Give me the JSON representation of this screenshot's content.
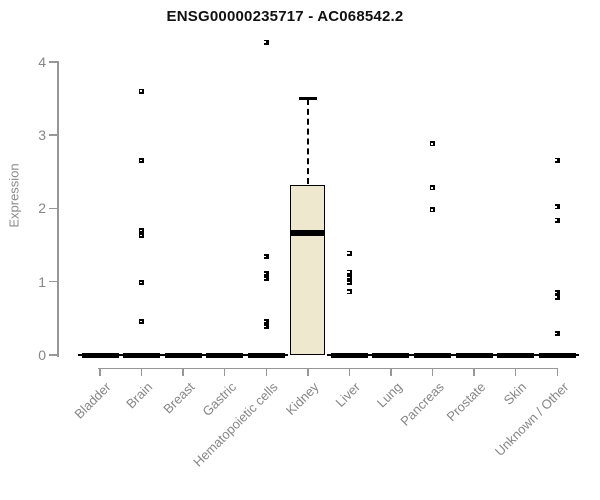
{
  "chart_data": {
    "type": "boxplot",
    "title": "ENSG00000235717 - AC068542.2",
    "ylabel": "Expression",
    "xlabel": "",
    "ylim": [
      0,
      4
    ],
    "yticks": [
      0,
      1,
      2,
      3,
      4
    ],
    "grid": false,
    "legend": false,
    "categories": [
      "Bladder",
      "Brain",
      "Breast",
      "Gastric",
      "Hematopoietic cells",
      "Kidney",
      "Liver",
      "Lung",
      "Pancreas",
      "Prostate",
      "Skin",
      "Unknown / Other"
    ],
    "boxes": [
      {
        "category": "Bladder",
        "q1": 0,
        "median": 0,
        "q3": 0,
        "whisker_low": 0,
        "whisker_high": 0,
        "outliers": []
      },
      {
        "category": "Brain",
        "q1": 0,
        "median": 0,
        "q3": 0,
        "whisker_low": 0,
        "whisker_high": 0,
        "outliers": [
          3.6,
          2.65,
          1.7,
          1.63,
          0.99,
          0.46
        ]
      },
      {
        "category": "Breast",
        "q1": 0,
        "median": 0,
        "q3": 0,
        "whisker_low": 0,
        "whisker_high": 0,
        "outliers": []
      },
      {
        "category": "Gastric",
        "q1": 0,
        "median": 0,
        "q3": 0,
        "whisker_low": 0,
        "whisker_high": 0,
        "outliers": []
      },
      {
        "category": "Hematopoietic cells",
        "q1": 0,
        "median": 0,
        "q3": 0,
        "whisker_low": 0,
        "whisker_high": 0,
        "outliers": [
          4.27,
          1.34,
          1.11,
          1.04,
          0.46,
          0.39
        ]
      },
      {
        "category": "Kidney",
        "q1": 0,
        "median": 1.66,
        "q3": 2.32,
        "whisker_low": 0,
        "whisker_high": 3.5,
        "outliers": []
      },
      {
        "category": "Liver",
        "q1": 0,
        "median": 0,
        "q3": 0,
        "whisker_low": 0,
        "whisker_high": 0,
        "outliers": [
          1.39,
          1.13,
          1.06,
          0.99,
          0.86
        ]
      },
      {
        "category": "Lung",
        "q1": 0,
        "median": 0,
        "q3": 0,
        "whisker_low": 0,
        "whisker_high": 0,
        "outliers": []
      },
      {
        "category": "Pancreas",
        "q1": 0,
        "median": 0,
        "q3": 0,
        "whisker_low": 0,
        "whisker_high": 0,
        "outliers": [
          2.88,
          2.28,
          1.98
        ]
      },
      {
        "category": "Prostate",
        "q1": 0,
        "median": 0,
        "q3": 0,
        "whisker_low": 0,
        "whisker_high": 0,
        "outliers": []
      },
      {
        "category": "Skin",
        "q1": 0,
        "median": 0,
        "q3": 0,
        "whisker_low": 0,
        "whisker_high": 0,
        "outliers": []
      },
      {
        "category": "Unknown / Other",
        "q1": 0,
        "median": 0,
        "q3": 0,
        "whisker_low": 0,
        "whisker_high": 0,
        "outliers": [
          2.66,
          2.02,
          1.84,
          0.85,
          0.79,
          0.29
        ]
      }
    ],
    "colors": {
      "box_fill": "#EDE8CE",
      "box_border": "#000000",
      "median": "#000000",
      "outlier": "#000000",
      "axis": "#979797",
      "tick_text": "#868686",
      "title_text": "#111111",
      "background": "#ffffff"
    }
  }
}
